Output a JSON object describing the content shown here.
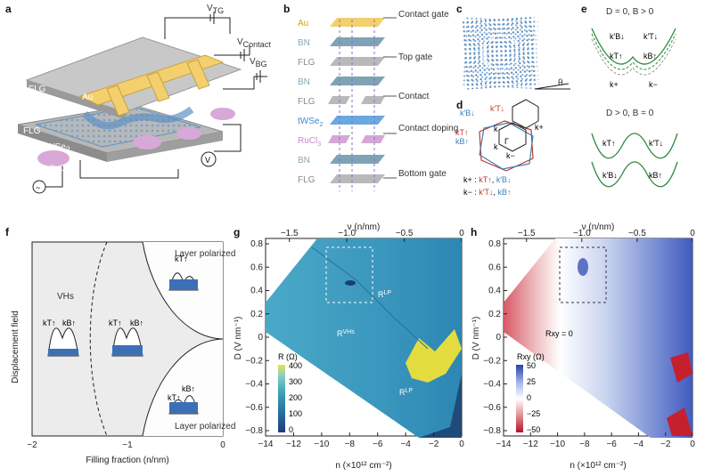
{
  "panels": {
    "a": {
      "letter": "a",
      "vtg": "V",
      "vtg_sub": "TG",
      "vcontact": "V",
      "vcontact_sub": "Contact",
      "vbg": "V",
      "vbg_sub": "BG",
      "flg_top": "FLG",
      "au": "Au",
      "flg_bot": "FLG",
      "wse2": "WSe",
      "wse2_sub": "2",
      "rucl3": "RuCl",
      "rucl3_sub": "3",
      "v_meter": "V",
      "ac_symbol": "~"
    },
    "b": {
      "letter": "b",
      "stack": [
        {
          "label": "Au",
          "color": "#f3cf6e",
          "label_color": "#d6a400"
        },
        {
          "label": "BN",
          "color": "#7fa3b5",
          "label_color": "#8aa7b7"
        },
        {
          "label": "FLG",
          "color": "#b9b9b9",
          "label_color": "#8a8a8a"
        },
        {
          "label": "BN",
          "color": "#7fa3b5",
          "label_color": "#8aa7b7"
        },
        {
          "label": "FLG",
          "color": "#b9b9b9",
          "label_color": "#8a8a8a"
        },
        {
          "label": "tWSe",
          "sub": "2",
          "color": "#6aa8df",
          "label_color": "#3d8ad0"
        },
        {
          "label": "RuCl",
          "sub": "3",
          "color": "#d4a8d6",
          "label_color": "#c78bc9"
        },
        {
          "label": "BN",
          "color": "#7fa3b5",
          "label_color": "#8aa7b7"
        },
        {
          "label": "FLG",
          "color": "#b9b9b9",
          "label_color": "#8a8a8a"
        }
      ],
      "callouts": [
        "Contact gate",
        "Top gate",
        "Contact",
        "Contact doping",
        "Bottom gate"
      ]
    },
    "c": {
      "letter": "c",
      "theta": "θ"
    },
    "d": {
      "letter": "d",
      "labels": [
        "k′B↓",
        "k′T↓",
        "kT↑",
        "kB↑",
        "Γ",
        "k+",
        "k−",
        "k",
        "k"
      ],
      "line1_prefix": "k+ :",
      "line1_a": "kT↑",
      "line1_sep": ",",
      "line1_b": "k′B↓",
      "line2_prefix": "k− :",
      "line2_a": "k′T↓",
      "line2_sep": ",",
      "line2_b": "kB↑"
    },
    "e": {
      "letter": "e",
      "title_top": "D = 0, B > 0",
      "title_bot": "D > 0, B = 0",
      "top_labels": [
        "k′B↓",
        "k′T↓",
        "kT↑",
        "kB↑",
        "k+",
        "k−"
      ],
      "bot_labels": [
        "kT↑",
        "k′T↓",
        "k′B↓",
        "kB↑"
      ]
    },
    "f": {
      "letter": "f",
      "ylabel": "Displacement field",
      "xlabel": "Filling fraction (n/nm)",
      "xticks": [
        "−2",
        "−1",
        "0"
      ],
      "layer_pol_top": "Layer polarized",
      "layer_pol_bot": "Layer polarized",
      "vhs": "VHs",
      "band_labels": [
        "kT↑",
        "kB↑",
        "kT↑",
        "kB↑",
        "kT↑",
        "kB↑",
        "kT↑"
      ]
    },
    "g": {
      "letter": "g",
      "top_axis_label": "ν (n/nm)",
      "top_ticks": [
        "−1.5",
        "−1.0",
        "−0.5",
        "0"
      ],
      "xlabel": "n (×10¹² cm⁻²)",
      "xticks": [
        "−14",
        "−12",
        "−10",
        "−8",
        "−6",
        "−4",
        "−2",
        "0"
      ],
      "ylabel": "D (V nm⁻¹)",
      "yticks": [
        "0.8",
        "0.6",
        "0.4",
        "0.2",
        "0",
        "−0.2",
        "−0.4",
        "−0.6",
        "−0.8"
      ],
      "cbar_title": "R (Ω)",
      "cbar_ticks": [
        "400",
        "300",
        "200",
        "100",
        "0"
      ],
      "ann_rlp_top": "R",
      "ann_rlp_top_sup": "LP",
      "ann_rvhs": "R",
      "ann_rvhs_sup": "VHs",
      "ann_rlp_bot": "R",
      "ann_rlp_bot_sup": "LP"
    },
    "h": {
      "letter": "h",
      "top_axis_label": "ν (n/nm)",
      "top_ticks": [
        "−1.5",
        "−1.0",
        "−0.5",
        "0"
      ],
      "xlabel": "n (×10¹² cm⁻²)",
      "xticks": [
        "−14",
        "−12",
        "−10",
        "−8",
        "−6",
        "−4",
        "−2",
        "0"
      ],
      "ylabel": "D (V nm⁻¹)",
      "yticks": [
        "0.8",
        "0.6",
        "0.4",
        "0.2",
        "0",
        "−0.2",
        "−0.4",
        "−0.6",
        "−0.8"
      ],
      "cbar_title": "Rxy (Ω)",
      "cbar_ticks": [
        "50",
        "25",
        "0",
        "−25",
        "−50"
      ],
      "ann_rxy": "Rxy = 0"
    }
  },
  "colors": {
    "blue_label": "#3c7fb6",
    "red_label": "#c0392b",
    "green_band": "#2e8b3e"
  }
}
